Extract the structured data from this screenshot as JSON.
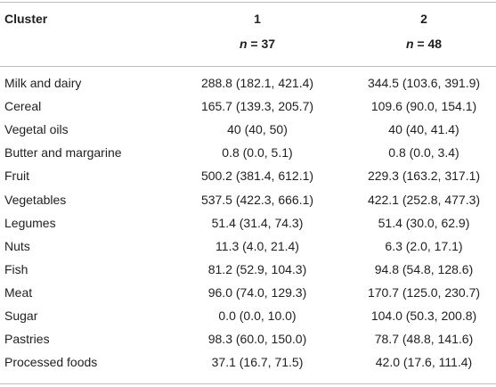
{
  "header": {
    "label": "Cluster",
    "col1": "1",
    "col2": "2",
    "n_var": "n",
    "col1_n": " = 37",
    "col2_n": " = 48"
  },
  "rows": [
    {
      "name": "Milk and dairy",
      "c1": "288.8 (182.1, 421.4)",
      "c2": "344.5 (103.6, 391.9)"
    },
    {
      "name": "Cereal",
      "c1": "165.7 (139.3, 205.7)",
      "c2": "109.6 (90.0, 154.1)"
    },
    {
      "name": "Vegetal oils",
      "c1": "40 (40, 50)",
      "c2": "40 (40, 41.4)"
    },
    {
      "name": "Butter and margarine",
      "c1": "0.8 (0.0, 5.1)",
      "c2": "0.8 (0.0, 3.4)"
    },
    {
      "name": "Fruit",
      "c1": "500.2 (381.4, 612.1)",
      "c2": "229.3 (163.2, 317.1)"
    },
    {
      "name": "Vegetables",
      "c1": "537.5 (422.3, 666.1)",
      "c2": "422.1 (252.8, 477.3)"
    },
    {
      "name": "Legumes",
      "c1": "51.4 (31.4, 74.3)",
      "c2": "51.4 (30.0, 62.9)"
    },
    {
      "name": "Nuts",
      "c1": "11.3 (4.0, 21.4)",
      "c2": "6.3 (2.0, 17.1)"
    },
    {
      "name": "Fish",
      "c1": "81.2 (52.9, 104.3)",
      "c2": "94.8 (54.8, 128.6)"
    },
    {
      "name": "Meat",
      "c1": "96.0 (74.0, 129.3)",
      "c2": "170.7 (125.0, 230.7)"
    },
    {
      "name": "Sugar",
      "c1": "0.0 (0.0, 10.0)",
      "c2": "104.0 (50.3, 200.8)"
    },
    {
      "name": "Pastries",
      "c1": "98.3 (60.0, 150.0)",
      "c2": "78.7 (48.8, 141.6)"
    },
    {
      "name": "Processed foods",
      "c1": "37.1 (16.7, 71.5)",
      "c2": "42.0 (17.6, 111.4)"
    }
  ]
}
